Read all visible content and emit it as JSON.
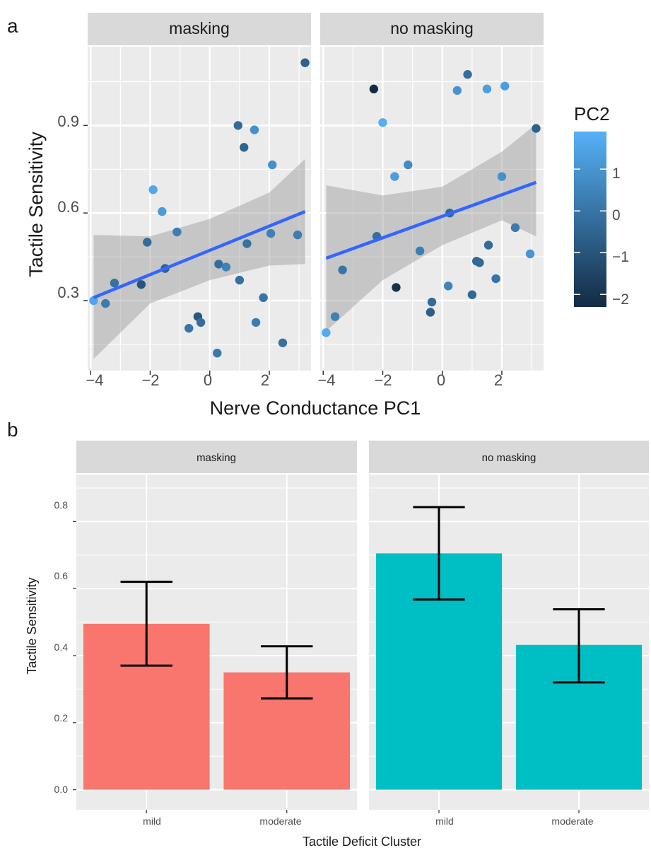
{
  "figure": {
    "panel_a_label": "a",
    "panel_b_label": "b"
  },
  "chart_data": [
    {
      "type": "scatter",
      "panel": "a",
      "facets": [
        "masking",
        "no masking"
      ],
      "xlabel": "Nerve Conductance PC1",
      "ylabel": "Tactile Sensitivity",
      "xlim": [
        -4.1,
        3.4
      ],
      "ylim": [
        0.06,
        1.17
      ],
      "x_ticks": [
        -4,
        -2,
        0,
        2
      ],
      "x_tick_labels": [
        "−4",
        "−2",
        "0",
        "2"
      ],
      "y_ticks": [
        0.3,
        0.6,
        0.9
      ],
      "y_tick_labels": [
        "0.3",
        "0.6",
        "0.9"
      ],
      "grid": true,
      "color_scale": {
        "title": "PC2",
        "low_color": "#132B43",
        "high_color": "#56B1F7",
        "range": [
          -2.3,
          1.9
        ],
        "ticks": [
          1,
          0,
          -1,
          -2
        ],
        "tick_labels": [
          "1",
          "0",
          "−1",
          "−2"
        ]
      },
      "smooth_color": "#3366FF",
      "band_color": "#999999",
      "panels": [
        {
          "name": "masking",
          "points": [
            {
              "x": -3.9,
              "y": 0.3,
              "pc2": 1.6
            },
            {
              "x": -3.5,
              "y": 0.29,
              "pc2": 0.2
            },
            {
              "x": -3.2,
              "y": 0.36,
              "pc2": -0.1
            },
            {
              "x": -2.3,
              "y": 0.355,
              "pc2": -1.0
            },
            {
              "x": -2.1,
              "y": 0.5,
              "pc2": -0.3
            },
            {
              "x": -1.9,
              "y": 0.68,
              "pc2": 1.6
            },
            {
              "x": -1.6,
              "y": 0.605,
              "pc2": 1.2
            },
            {
              "x": -1.5,
              "y": 0.41,
              "pc2": -0.6
            },
            {
              "x": -1.1,
              "y": 0.535,
              "pc2": 0.3
            },
            {
              "x": -0.7,
              "y": 0.205,
              "pc2": 0.0
            },
            {
              "x": -0.4,
              "y": 0.245,
              "pc2": -0.9
            },
            {
              "x": -0.3,
              "y": 0.225,
              "pc2": -0.2
            },
            {
              "x": 0.25,
              "y": 0.12,
              "pc2": 0.1
            },
            {
              "x": 0.3,
              "y": 0.425,
              "pc2": -0.2
            },
            {
              "x": 0.55,
              "y": 0.415,
              "pc2": 0.4
            },
            {
              "x": 0.95,
              "y": 0.9,
              "pc2": -0.3
            },
            {
              "x": 1.0,
              "y": 0.37,
              "pc2": -0.1
            },
            {
              "x": 1.15,
              "y": 0.825,
              "pc2": -0.5
            },
            {
              "x": 1.25,
              "y": 0.495,
              "pc2": -0.1
            },
            {
              "x": 1.5,
              "y": 0.885,
              "pc2": 0.9
            },
            {
              "x": 1.55,
              "y": 0.225,
              "pc2": 0.2
            },
            {
              "x": 1.8,
              "y": 0.31,
              "pc2": 0.0
            },
            {
              "x": 2.05,
              "y": 0.53,
              "pc2": 0.4
            },
            {
              "x": 2.1,
              "y": 0.765,
              "pc2": 0.9
            },
            {
              "x": 2.45,
              "y": 0.155,
              "pc2": -0.1
            },
            {
              "x": 2.95,
              "y": 0.525,
              "pc2": 0.3
            },
            {
              "x": 3.2,
              "y": 1.115,
              "pc2": -0.6
            }
          ],
          "fit": {
            "x": [
              -3.9,
              3.2
            ],
            "y": [
              0.31,
              0.605
            ]
          },
          "band": {
            "x": [
              -3.9,
              -2.0,
              0.0,
              2.0,
              3.2
            ],
            "lower": [
              0.1,
              0.29,
              0.37,
              0.42,
              0.425
            ],
            "upper": [
              0.525,
              0.52,
              0.58,
              0.67,
              0.785
            ]
          }
        },
        {
          "name": "no masking",
          "points": [
            {
              "x": -3.9,
              "y": 0.19,
              "pc2": 1.7
            },
            {
              "x": -3.6,
              "y": 0.245,
              "pc2": 0.4
            },
            {
              "x": -3.35,
              "y": 0.405,
              "pc2": 0.0
            },
            {
              "x": -2.3,
              "y": 1.025,
              "pc2": -2.3
            },
            {
              "x": -2.2,
              "y": 0.52,
              "pc2": -0.2
            },
            {
              "x": -2.0,
              "y": 0.91,
              "pc2": 1.8
            },
            {
              "x": -1.6,
              "y": 0.725,
              "pc2": 1.3
            },
            {
              "x": -1.55,
              "y": 0.345,
              "pc2": -2.1
            },
            {
              "x": -1.15,
              "y": 0.765,
              "pc2": 0.7
            },
            {
              "x": -0.75,
              "y": 0.47,
              "pc2": 0.3
            },
            {
              "x": -0.4,
              "y": 0.26,
              "pc2": -0.7
            },
            {
              "x": -0.35,
              "y": 0.295,
              "pc2": -0.3
            },
            {
              "x": 0.2,
              "y": 0.35,
              "pc2": 0.5
            },
            {
              "x": 0.25,
              "y": 0.6,
              "pc2": -0.4
            },
            {
              "x": 0.5,
              "y": 1.02,
              "pc2": 1.0
            },
            {
              "x": 0.85,
              "y": 1.075,
              "pc2": -0.2
            },
            {
              "x": 1.0,
              "y": 0.32,
              "pc2": -0.4
            },
            {
              "x": 1.15,
              "y": 0.435,
              "pc2": -0.4
            },
            {
              "x": 1.25,
              "y": 0.43,
              "pc2": -0.4
            },
            {
              "x": 1.5,
              "y": 1.025,
              "pc2": 1.3
            },
            {
              "x": 1.55,
              "y": 0.49,
              "pc2": -0.3
            },
            {
              "x": 1.8,
              "y": 0.375,
              "pc2": 0.0
            },
            {
              "x": 2.0,
              "y": 0.725,
              "pc2": 0.9
            },
            {
              "x": 2.1,
              "y": 1.035,
              "pc2": 1.3
            },
            {
              "x": 2.45,
              "y": 0.55,
              "pc2": 0.2
            },
            {
              "x": 2.95,
              "y": 0.46,
              "pc2": 1.0
            },
            {
              "x": 3.15,
              "y": 0.89,
              "pc2": -0.6
            }
          ],
          "fit": {
            "x": [
              -3.9,
              3.15
            ],
            "y": [
              0.445,
              0.705
            ]
          },
          "band": {
            "x": [
              -3.9,
              -2.0,
              0.0,
              2.0,
              3.15
            ],
            "lower": [
              0.195,
              0.37,
              0.49,
              0.575,
              0.52
            ],
            "upper": [
              0.695,
              0.66,
              0.69,
              0.81,
              0.905
            ]
          }
        }
      ]
    },
    {
      "type": "bar",
      "panel": "b",
      "facets": [
        "masking",
        "no masking"
      ],
      "categories": [
        "mild",
        "moderate"
      ],
      "xlabel": "Tactile Deficit Cluster",
      "ylabel": "Tactile Sensitivity",
      "ylim": [
        -0.06,
        0.94
      ],
      "y_ticks": [
        0.0,
        0.2,
        0.4,
        0.6,
        0.8
      ],
      "y_tick_labels": [
        "0.0",
        "0.2",
        "0.4",
        "0.6",
        "0.8"
      ],
      "grid": true,
      "panels": [
        {
          "name": "masking",
          "color": "#F8766D",
          "values": [
            0.495,
            0.35
          ],
          "err_low": [
            0.37,
            0.272
          ],
          "err_high": [
            0.62,
            0.428
          ]
        },
        {
          "name": "no masking",
          "color": "#00BFC4",
          "values": [
            0.705,
            0.432
          ],
          "err_low": [
            0.567,
            0.32
          ],
          "err_high": [
            0.843,
            0.538
          ]
        }
      ]
    }
  ]
}
